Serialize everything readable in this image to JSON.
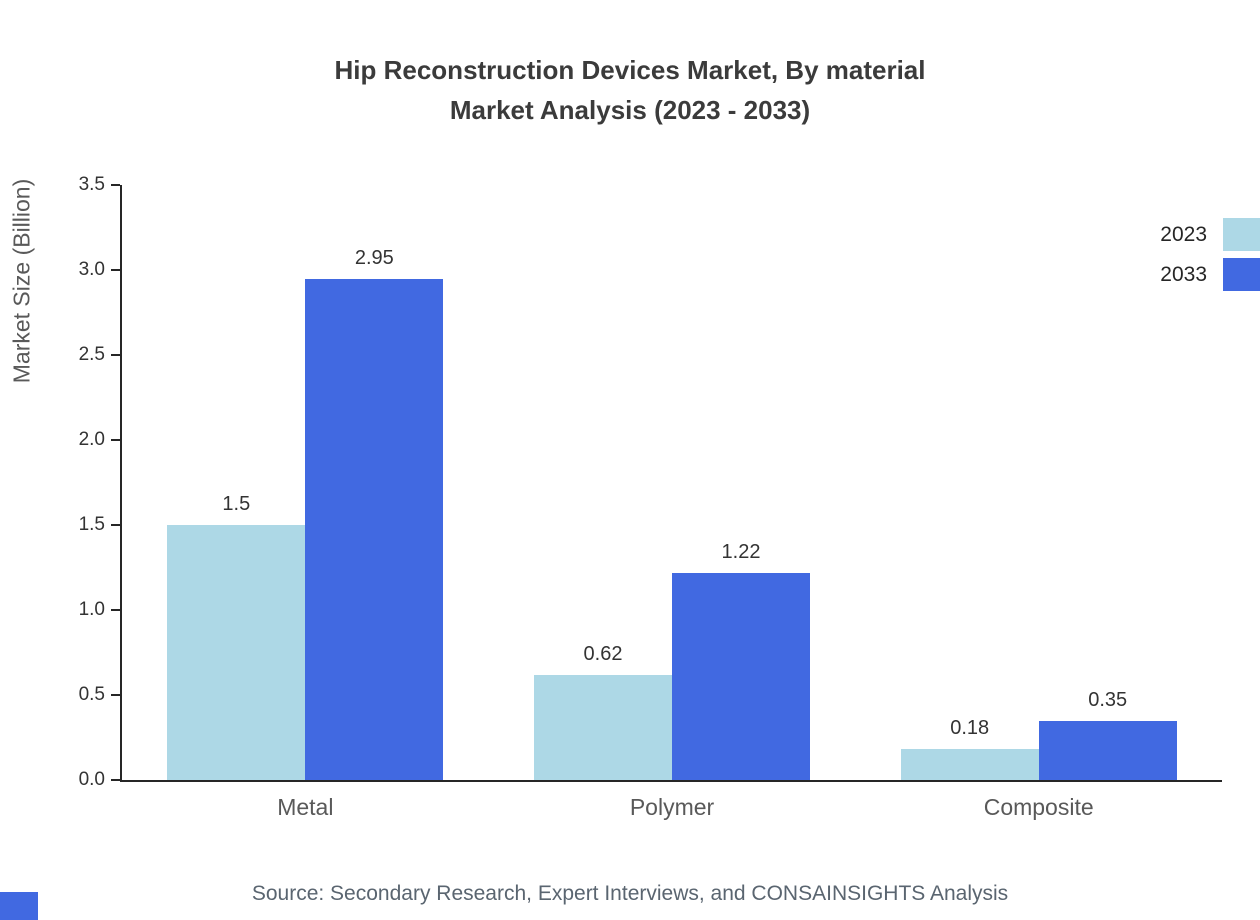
{
  "title": {
    "line1": "Hip Reconstruction Devices Market, By material",
    "line2": "Market Analysis (2023 - 2033)"
  },
  "y_axis_label": "Market Size (Billion)",
  "source": "Source: Secondary Research, Expert Interviews, and CONSAINSIGHTS Analysis",
  "colors": {
    "series_2023": "#add8e6",
    "series_2033": "#4169e1",
    "axis": "#262626",
    "title_text": "#3b3b3b",
    "muted_text": "#595959",
    "brand_corner": "#4169e1"
  },
  "legend": [
    {
      "label": "2023",
      "color": "#add8e6"
    },
    {
      "label": "2033",
      "color": "#4169e1"
    }
  ],
  "chart_data": {
    "type": "bar",
    "categories": [
      "Metal",
      "Polymer",
      "Composite"
    ],
    "series": [
      {
        "name": "2023",
        "color": "#add8e6",
        "values": [
          1.5,
          0.62,
          0.18
        ]
      },
      {
        "name": "2033",
        "color": "#4169e1",
        "values": [
          2.95,
          1.22,
          0.35
        ]
      }
    ],
    "title": "Hip Reconstruction Devices Market, By material Market Analysis (2023 - 2033)",
    "xlabel": "",
    "ylabel": "Market Size (Billion)",
    "ylim": [
      0,
      3.5
    ],
    "yticks": [
      0.0,
      0.5,
      1.0,
      1.5,
      2.0,
      2.5,
      3.0,
      3.5
    ],
    "grid": false,
    "legend_position": "top-right"
  }
}
